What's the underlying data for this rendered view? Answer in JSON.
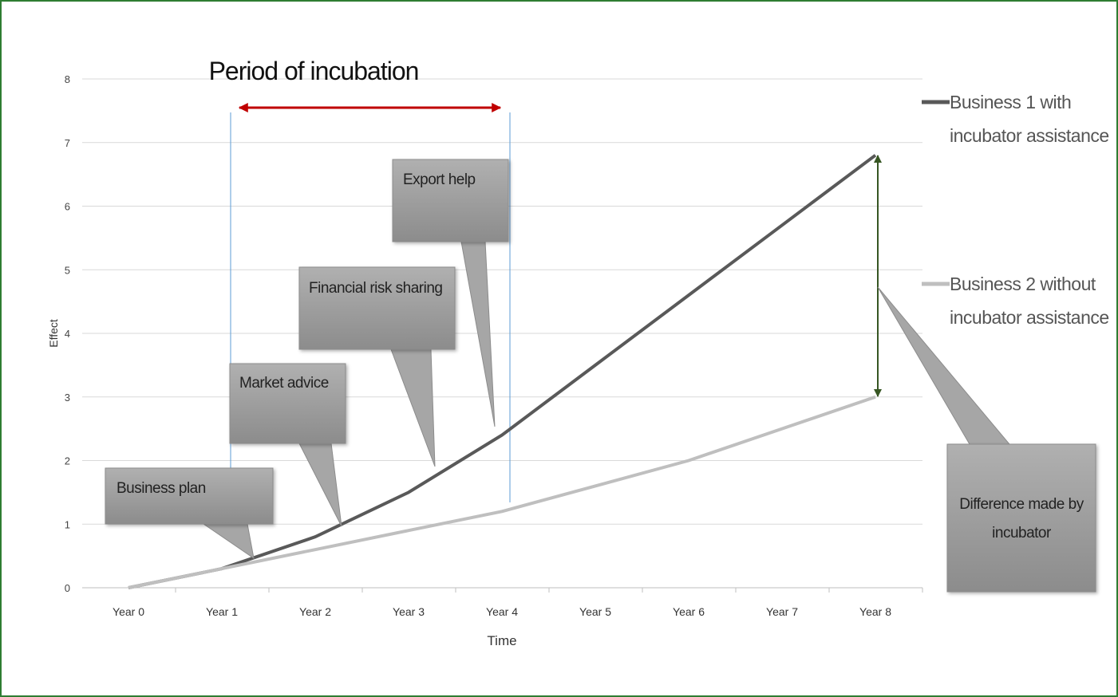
{
  "chart_data": {
    "type": "line",
    "title": "Period of incubation",
    "x_label": "Time",
    "y_label": "Effect",
    "categories": [
      "Year 0",
      "Year 1",
      "Year 2",
      "Year 3",
      "Year 4",
      "Year 5",
      "Year 6",
      "Year 7",
      "Year 8"
    ],
    "series": [
      {
        "name": "Business 1 with incubator assistance",
        "color": "#595959",
        "values": [
          0,
          0.3,
          0.8,
          1.5,
          2.4,
          3.5,
          4.6,
          5.7,
          6.8
        ]
      },
      {
        "name": "Business 2 without incubator assistance",
        "color": "#bfbfbf",
        "values": [
          0,
          0.3,
          0.6,
          0.9,
          1.2,
          1.6,
          2.0,
          2.5,
          3.0
        ]
      }
    ],
    "ylim": [
      0,
      8
    ],
    "yticks": [
      0,
      1,
      2,
      3,
      4,
      5,
      6,
      7,
      8
    ],
    "grid": true,
    "legend": "right",
    "annotations": [
      "Business plan",
      "Market advice",
      "Financial risk sharing",
      "Export help",
      "Difference made by incubator"
    ]
  }
}
